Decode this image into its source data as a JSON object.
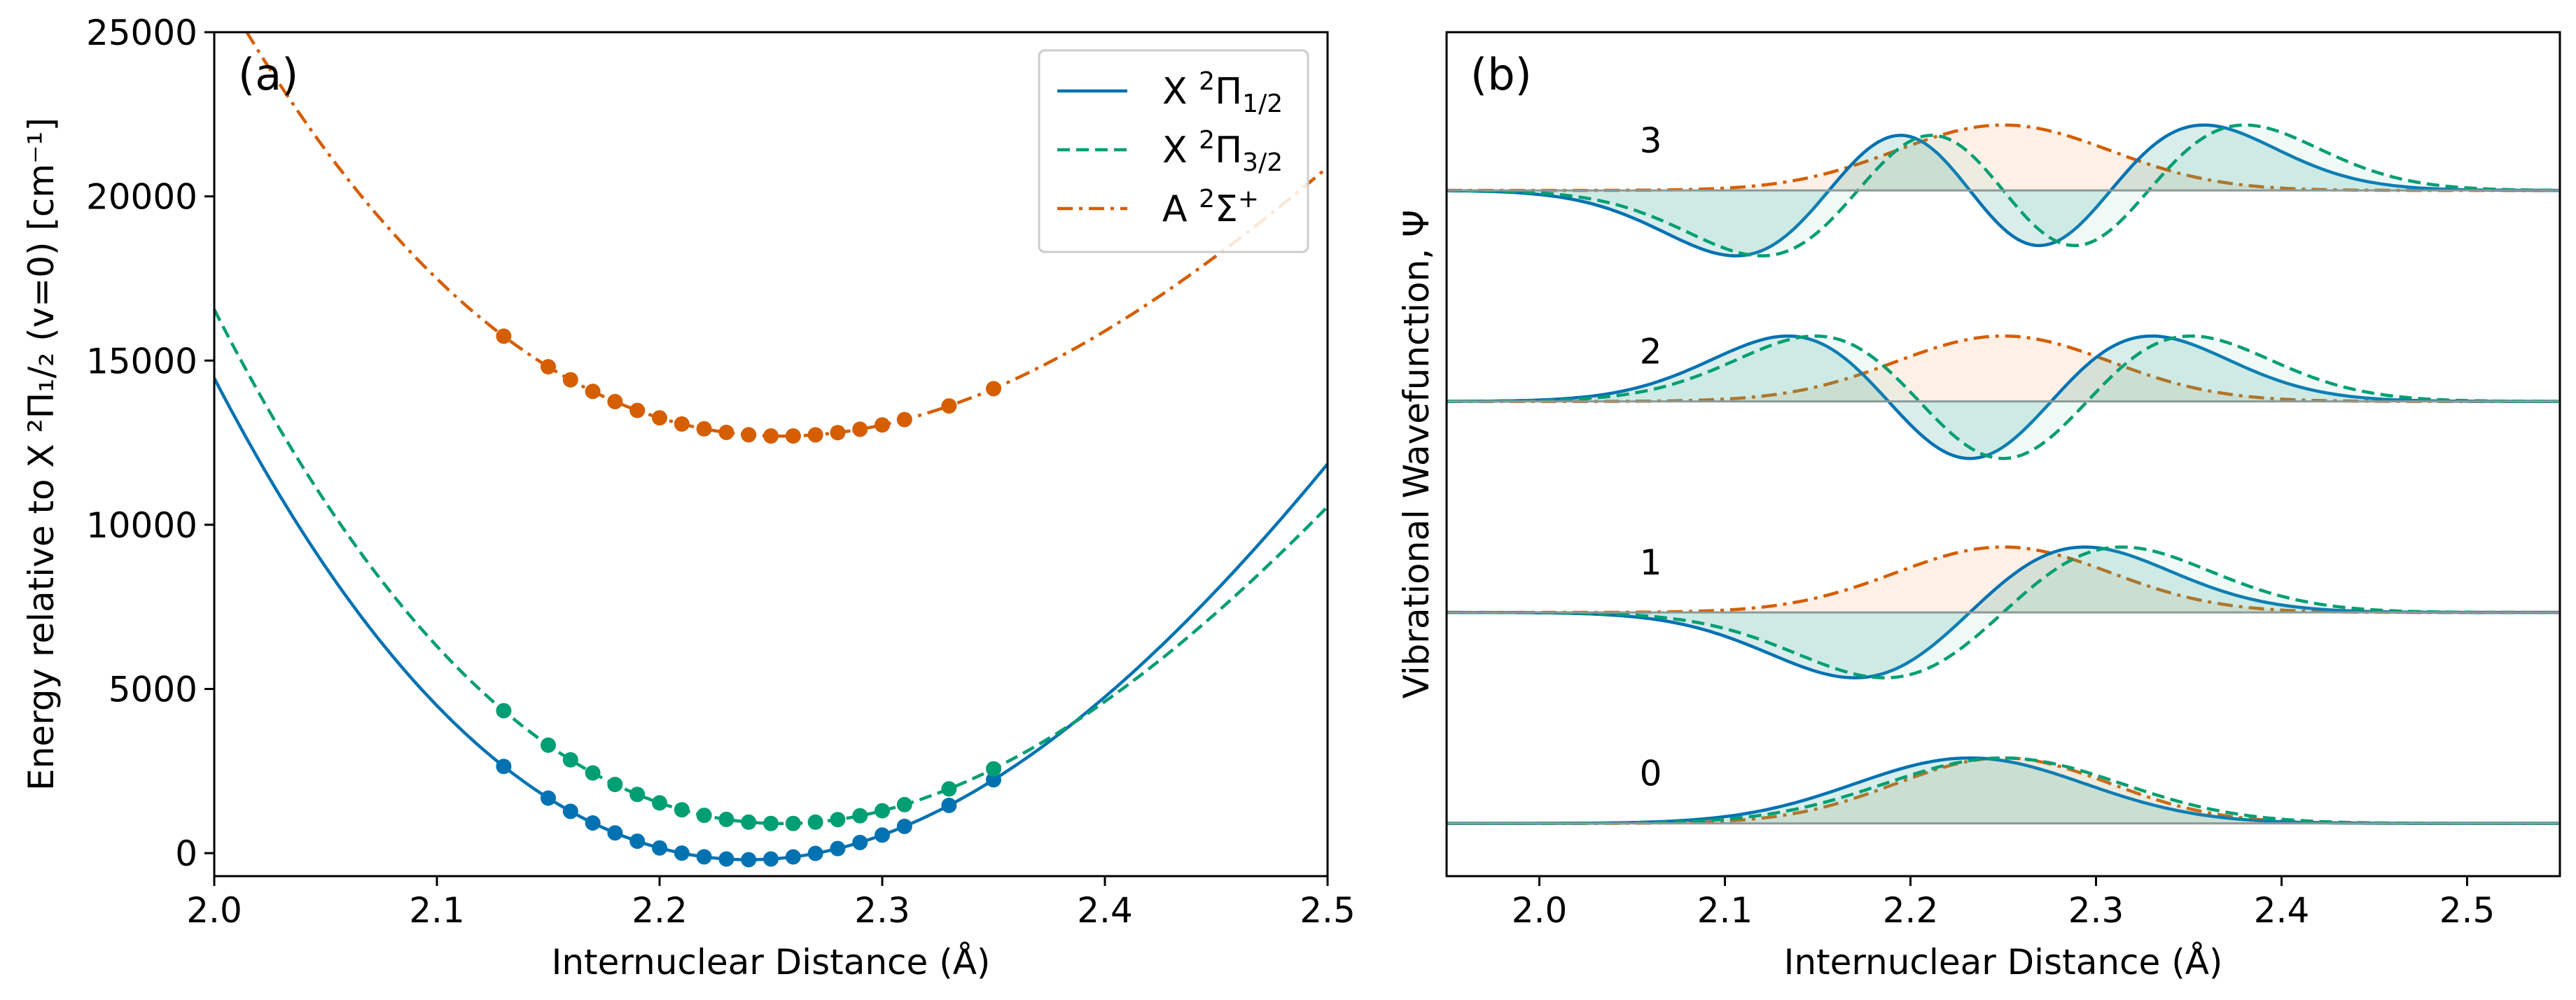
{
  "colors": {
    "x1": "#0072b2",
    "x3": "#009e73",
    "a": "#d55e00",
    "axis": "#000000"
  },
  "chart_data": [
    {
      "type": "line",
      "panel_label": "(a)",
      "xlabel": "Internuclear Distance (Å)",
      "ylabel": "Energy relative to X ²Π₁/₂ (v=0) [cm⁻¹]",
      "xlim": [
        2.0,
        2.5
      ],
      "ylim": [
        -700,
        25000
      ],
      "xticks": [
        2.0,
        2.1,
        2.2,
        2.3,
        2.4,
        2.5
      ],
      "xtick_labels": [
        "2.0",
        "2.1",
        "2.2",
        "2.3",
        "2.4",
        "2.5"
      ],
      "yticks": [
        0,
        5000,
        10000,
        15000,
        20000,
        25000
      ],
      "ytick_labels": [
        "0",
        "5000",
        "10000",
        "15000",
        "20000",
        "25000"
      ],
      "legend": {
        "position": "top-right",
        "entries": [
          {
            "label": "X",
            "sup": "2",
            "sym": "Π",
            "sub": "1/2",
            "series": "X1"
          },
          {
            "label": "X",
            "sup": "2",
            "sym": "Π",
            "sub": "3/2",
            "series": "X3"
          },
          {
            "label": "A",
            "sup": "2",
            "sym": "Σ",
            "sup2": "+",
            "series": "A"
          }
        ]
      },
      "series": [
        {
          "name": "X ²Π₁/₂",
          "id": "X1",
          "style": "solid",
          "curve": {
            "Te": -200,
            "re": 2.24,
            "k": 218000,
            "b": 0.7
          },
          "points_x": [
            2.13,
            2.15,
            2.16,
            2.17,
            2.18,
            2.19,
            2.2,
            2.21,
            2.22,
            2.23,
            2.24,
            2.25,
            2.26,
            2.27,
            2.28,
            2.29,
            2.3,
            2.31,
            2.33,
            2.35
          ]
        },
        {
          "name": "X ²Π₃/₂",
          "id": "X3",
          "style": "dashed",
          "curve": {
            "Te": 900,
            "re": 2.255,
            "k": 200000,
            "b": 0.8
          },
          "points_x": [
            2.13,
            2.15,
            2.16,
            2.17,
            2.18,
            2.19,
            2.2,
            2.21,
            2.22,
            2.23,
            2.24,
            2.25,
            2.26,
            2.27,
            2.28,
            2.29,
            2.3,
            2.31,
            2.33,
            2.35
          ]
        },
        {
          "name": "A ²Σ⁺",
          "id": "A",
          "style": "dashdot",
          "curve": {
            "Te": 12700,
            "re": 2.255,
            "k": 175000,
            "b": 0.9
          },
          "points_x": [
            2.13,
            2.15,
            2.16,
            2.17,
            2.18,
            2.19,
            2.2,
            2.21,
            2.22,
            2.23,
            2.24,
            2.25,
            2.26,
            2.27,
            2.28,
            2.29,
            2.3,
            2.31,
            2.33,
            2.35
          ]
        }
      ]
    },
    {
      "type": "line",
      "panel_label": "(b)",
      "xlabel": "Internuclear Distance (Å)",
      "ylabel": "Vibrational Wavefunction, Ψ",
      "xlim": [
        1.95,
        2.55
      ],
      "xticks": [
        2.0,
        2.1,
        2.2,
        2.3,
        2.4,
        2.5
      ],
      "xtick_labels": [
        "2.0",
        "2.1",
        "2.2",
        "2.3",
        "2.4",
        "2.5"
      ],
      "level_spacing": 1.0,
      "level_labels": [
        "0",
        "1",
        "2",
        "3"
      ],
      "level_label_x": 2.06,
      "series": [
        {
          "name": "X ²Π₁/₂",
          "id": "X1",
          "style": "solid",
          "center": 2.232,
          "width": 0.062
        },
        {
          "name": "X ²Π₃/₂",
          "id": "X3",
          "style": "dashed",
          "center": 2.25,
          "width": 0.064
        },
        {
          "name": "A ²Σ⁺",
          "id": "A",
          "style": "dashdot",
          "center": 2.25,
          "width": 0.082
        }
      ]
    }
  ]
}
